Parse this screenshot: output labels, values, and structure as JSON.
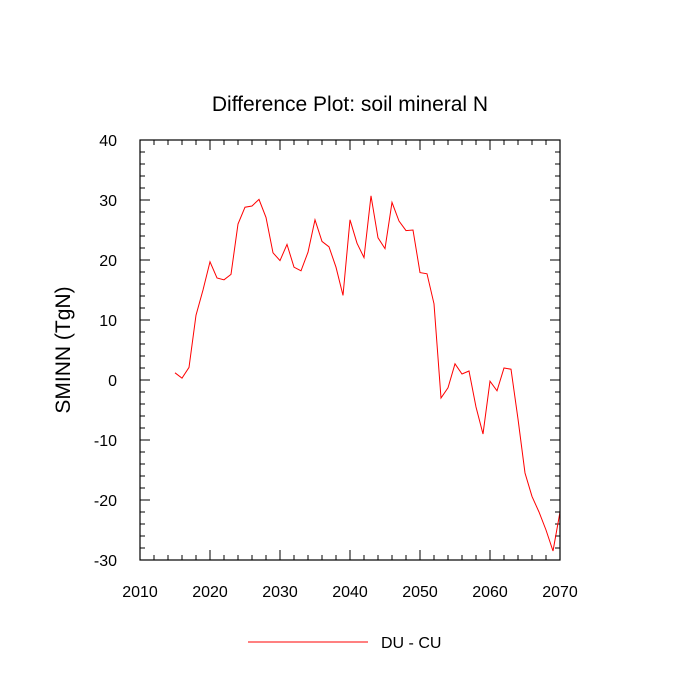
{
  "chart_data": {
    "type": "line",
    "title": "Difference Plot: soil mineral N",
    "xlabel": "",
    "ylabel": "SMINN  (TgN)",
    "xlim": [
      2010,
      2070
    ],
    "ylim": [
      -30,
      40
    ],
    "xticks": [
      2010,
      2020,
      2030,
      2040,
      2050,
      2060,
      2070
    ],
    "yticks": [
      -30,
      -20,
      -10,
      0,
      10,
      20,
      30,
      40
    ],
    "xtick_labels": [
      "2010",
      "2020",
      "2030",
      "2040",
      "2050",
      "2060",
      "2070"
    ],
    "ytick_labels": [
      "-30",
      "-20",
      "-10",
      "0",
      "10",
      "20",
      "30",
      "40"
    ],
    "grid": false,
    "legend_position": "bottom-center",
    "series": [
      {
        "name": "DU - CU",
        "color": "#ff0000",
        "x": [
          2015,
          2016,
          2017,
          2018,
          2019,
          2020,
          2021,
          2022,
          2023,
          2024,
          2025,
          2026,
          2027,
          2028,
          2029,
          2030,
          2031,
          2032,
          2033,
          2034,
          2035,
          2036,
          2037,
          2038,
          2039,
          2040,
          2041,
          2042,
          2043,
          2044,
          2045,
          2046,
          2047,
          2048,
          2049,
          2050,
          2051,
          2052,
          2053,
          2054,
          2055,
          2056,
          2057,
          2058,
          2059,
          2060,
          2061,
          2062,
          2063,
          2064,
          2065,
          2066,
          2067,
          2068,
          2069,
          2070
        ],
        "y": [
          1.2,
          0.3,
          2.1,
          10.8,
          15.0,
          19.7,
          17.0,
          16.7,
          17.6,
          26.0,
          28.8,
          29.0,
          30.1,
          27.1,
          21.2,
          19.9,
          22.6,
          18.8,
          18.2,
          21.3,
          26.7,
          23.1,
          22.2,
          18.8,
          14.1,
          26.7,
          22.8,
          20.4,
          30.7,
          23.7,
          21.9,
          29.6,
          26.5,
          24.9,
          25.0,
          17.9,
          17.7,
          12.7,
          -3.0,
          -1.3,
          2.7,
          1.0,
          1.5,
          -4.5,
          -9.0,
          -0.2,
          -1.8,
          2.0,
          1.8,
          -6.5,
          -15.5,
          -19.4,
          -22.0,
          -25.0,
          -28.5,
          -22.0
        ]
      }
    ]
  }
}
